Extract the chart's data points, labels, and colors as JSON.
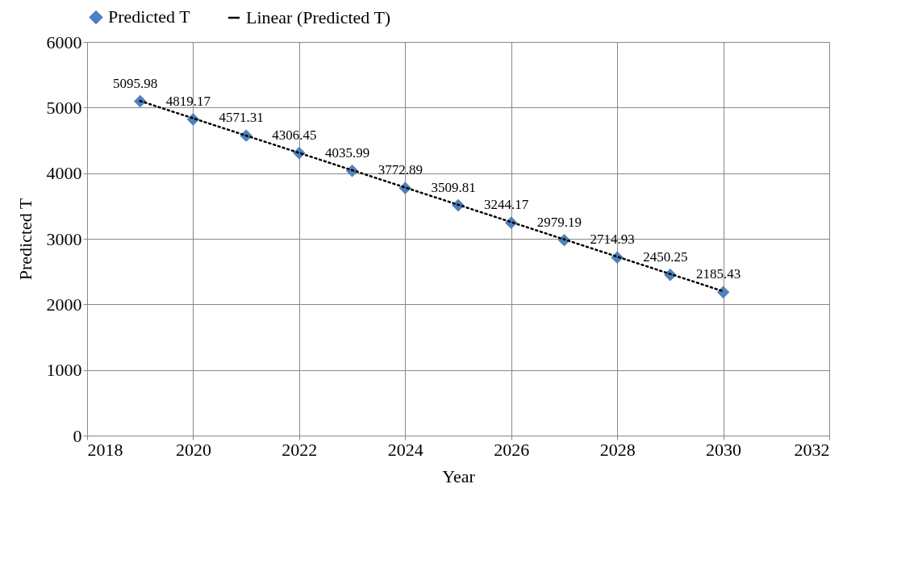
{
  "chart_data": {
    "type": "scatter",
    "xlabel": "Year",
    "ylabel": "Predicted T",
    "x": [
      2019,
      2020,
      2021,
      2022,
      2023,
      2024,
      2025,
      2026,
      2027,
      2028,
      2029,
      2030
    ],
    "series": [
      {
        "name": "Predicted T",
        "color": "#4f81bd",
        "marker": "diamond",
        "values": [
          5095.98,
          4819.17,
          4571.31,
          4306.45,
          4035.99,
          3772.89,
          3509.81,
          3244.17,
          2979.19,
          2714.93,
          2450.25,
          2185.43
        ],
        "value_labels": [
          "5095.98",
          "4819.17",
          "4571.31",
          "4306.45",
          "4035.99",
          "3772.89",
          "3509.81",
          "3244.17",
          "2979.19",
          "2714.93",
          "2450.25",
          "2185.43"
        ]
      },
      {
        "name": "Linear (Predicted T)",
        "type": "line",
        "color": "#000000",
        "line_style": "dotted",
        "x": [
          2019,
          2030
        ],
        "values": [
          5100,
          2200
        ]
      }
    ],
    "xlim": [
      2018,
      2032
    ],
    "xticks": [
      2018,
      2020,
      2022,
      2024,
      2026,
      2028,
      2030,
      2032
    ],
    "ylim": [
      0,
      6000
    ],
    "yticks": [
      0,
      1000,
      2000,
      3000,
      4000,
      5000,
      6000
    ],
    "grid": true,
    "legend": "top"
  }
}
